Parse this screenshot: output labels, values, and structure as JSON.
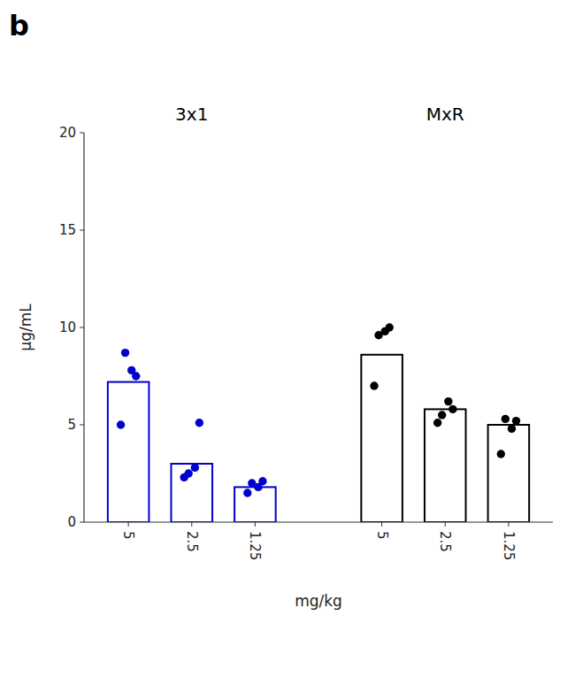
{
  "chart_data": {
    "type": "bar",
    "title": "b",
    "xlabel": "mg/kg",
    "ylabel": "μg/mL",
    "categories": [
      "5",
      "2.5",
      "1.25"
    ],
    "series": [
      {
        "name": "3x1",
        "color": "#0000cc",
        "values": [
          7.2,
          3.0,
          1.8
        ],
        "dots": [
          [
            5.0,
            7.8,
            7.5,
            8.7
          ],
          [
            2.3,
            2.8,
            5.1,
            2.5
          ],
          [
            1.5,
            1.8,
            2.1,
            2.0
          ]
        ]
      },
      {
        "name": "MxR",
        "color": "black",
        "values": [
          8.6,
          5.8,
          5.0
        ],
        "dots": [
          [
            7.0,
            9.8,
            10.0,
            9.6
          ],
          [
            5.1,
            6.2,
            5.8,
            5.5
          ],
          [
            3.5,
            4.8,
            5.2,
            5.3
          ]
        ]
      }
    ],
    "ylim": [
      0,
      20
    ],
    "yticks": [
      0,
      5,
      10,
      15,
      20
    ],
    "grid": false
  }
}
